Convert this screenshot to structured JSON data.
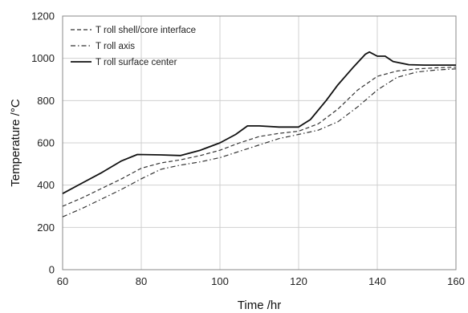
{
  "chart_data": {
    "type": "line",
    "title": "",
    "xlabel": "Time /hr",
    "ylabel": "Temperature /°C",
    "xlim": [
      60,
      160
    ],
    "ylim": [
      0,
      1200
    ],
    "xticks": [
      60,
      80,
      100,
      120,
      140,
      160
    ],
    "yticks": [
      0,
      200,
      400,
      600,
      800,
      1000,
      1200
    ],
    "grid": true,
    "legend_position": "top-left",
    "series": [
      {
        "name": "T roll shell/core interface",
        "style": "dashed",
        "color": "#333333",
        "x": [
          60,
          65,
          70,
          75,
          80,
          85,
          90,
          95,
          100,
          105,
          110,
          115,
          120,
          125,
          130,
          135,
          140,
          145,
          150,
          155,
          160
        ],
        "y": [
          300,
          340,
          385,
          430,
          480,
          505,
          520,
          540,
          565,
          600,
          630,
          645,
          655,
          690,
          760,
          850,
          915,
          940,
          950,
          955,
          958
        ]
      },
      {
        "name": "T roll axis",
        "style": "dashdot",
        "color": "#333333",
        "x": [
          60,
          65,
          70,
          75,
          80,
          85,
          90,
          95,
          100,
          105,
          110,
          115,
          120,
          125,
          130,
          135,
          140,
          145,
          150,
          155,
          160
        ],
        "y": [
          250,
          290,
          335,
          380,
          430,
          475,
          495,
          510,
          530,
          560,
          590,
          620,
          640,
          660,
          700,
          770,
          850,
          910,
          935,
          945,
          950
        ]
      },
      {
        "name": "T roll surface center",
        "style": "solid",
        "color": "#111111",
        "x": [
          60,
          65,
          70,
          75,
          79,
          85,
          90,
          95,
          100,
          104,
          107,
          110,
          115,
          120,
          123,
          127,
          130,
          134,
          137,
          138,
          140,
          142,
          144,
          148,
          152,
          156,
          160
        ],
        "y": [
          360,
          410,
          460,
          515,
          545,
          543,
          540,
          565,
          600,
          640,
          680,
          680,
          675,
          675,
          710,
          800,
          875,
          960,
          1020,
          1030,
          1010,
          1010,
          985,
          970,
          968,
          968,
          968
        ]
      }
    ]
  }
}
